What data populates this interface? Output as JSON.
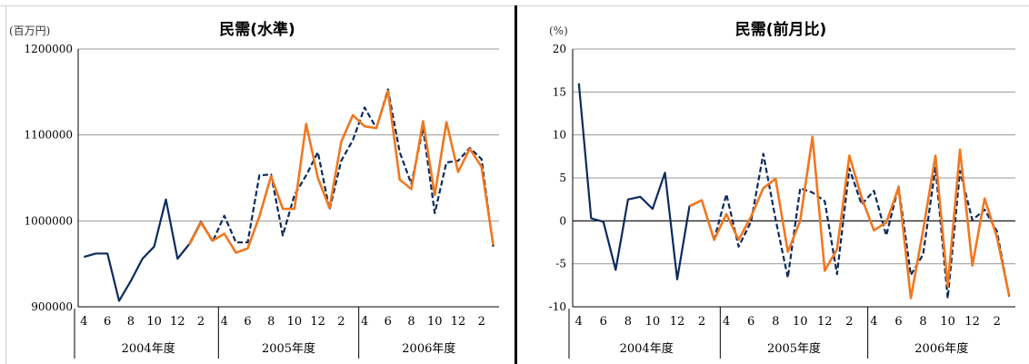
{
  "chart_data": [
    {
      "type": "line",
      "title": "民需(水準)",
      "unit_label": "(百万円)",
      "ylim": [
        900000,
        1200000
      ],
      "yticks": [
        900000,
        1000000,
        1100000,
        1200000
      ],
      "tick_labels": [
        "4",
        "6",
        "8",
        "10",
        "12",
        "2",
        "4",
        "6",
        "8",
        "10",
        "12",
        "2",
        "4",
        "6",
        "8",
        "10",
        "12",
        "2"
      ],
      "fiscal_years": [
        "2004年度",
        "2005年度",
        "2006年度"
      ],
      "months_per_year": 12,
      "grid": true,
      "series": [
        {
          "style": "solid",
          "color": "#0d2a5c",
          "start_index": 0,
          "values": [
            958000,
            962000,
            962000,
            907000,
            930000,
            956000,
            970000,
            1025000,
            956000,
            973000,
            999000,
            977000
          ]
        },
        {
          "style": "dashed",
          "color": "#0d2a5c",
          "start_index": 10,
          "values": [
            999000,
            976000,
            1006000,
            975000,
            975000,
            1053000,
            1054000,
            983000,
            1030000,
            1053000,
            1080000,
            1013000,
            1070000,
            1094000,
            1132000,
            1108000,
            1153000,
            1080000,
            1043000,
            1108000,
            1009000,
            1068000,
            1070000,
            1085000,
            1072000,
            970000
          ]
        },
        {
          "style": "solid",
          "color": "#f07820",
          "start_index": 9,
          "values": [
            972000,
            998000,
            977000,
            985000,
            963000,
            968000,
            1005000,
            1052000,
            1014000,
            1014000,
            1113000,
            1050000,
            1015000,
            1092000,
            1123000,
            1110000,
            1108000,
            1151000,
            1048000,
            1037000,
            1116000,
            1030000,
            1115000,
            1057000,
            1084000,
            1063000,
            972000
          ]
        }
      ]
    },
    {
      "type": "line",
      "title": "民需(前月比)",
      "unit_label": "(%)",
      "ylim": [
        -10,
        20
      ],
      "yticks": [
        -10,
        -5,
        0,
        5,
        10,
        15,
        20
      ],
      "tick_labels": [
        "4",
        "6",
        "8",
        "10",
        "12",
        "2",
        "4",
        "6",
        "8",
        "10",
        "12",
        "2",
        "4",
        "6",
        "8",
        "10",
        "12",
        "2"
      ],
      "fiscal_years": [
        "2004年度",
        "2005年度",
        "2006年度"
      ],
      "months_per_year": 12,
      "grid": true,
      "series": [
        {
          "style": "solid",
          "color": "#0d2a5c",
          "start_index": 0,
          "values": [
            16.0,
            0.3,
            -0.1,
            -5.7,
            2.5,
            2.8,
            1.4,
            5.6,
            -6.8,
            1.7,
            2.4
          ]
        },
        {
          "style": "dashed",
          "color": "#0d2a5c",
          "start_index": 10,
          "values": [
            2.4,
            -2.2,
            3.1,
            -3.0,
            -0.1,
            7.8,
            0.2,
            -6.6,
            3.8,
            3.3,
            2.3,
            -6.2,
            6.1,
            1.9,
            3.5,
            -1.7,
            4.0,
            -6.3,
            -3.9,
            6.2,
            -9.0,
            5.8,
            0.1,
            1.3,
            -1.2,
            -8.8
          ]
        },
        {
          "style": "solid",
          "color": "#f07820",
          "start_index": 9,
          "values": [
            1.7,
            2.4,
            -2.2,
            0.8,
            -2.2,
            0.5,
            3.8,
            4.9,
            -3.6,
            0.0,
            9.8,
            -5.8,
            -3.3,
            7.6,
            2.7,
            -1.1,
            -0.2,
            3.9,
            -9.0,
            -1.1,
            7.6,
            -7.6,
            8.3,
            -5.2,
            2.6,
            -1.9,
            -8.7
          ]
        }
      ]
    }
  ]
}
